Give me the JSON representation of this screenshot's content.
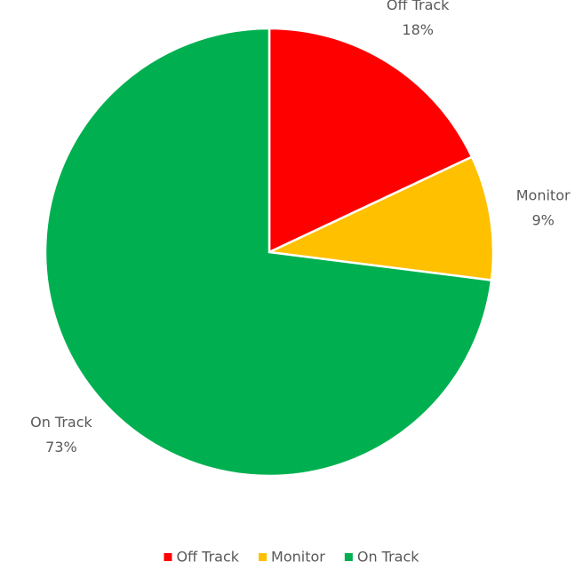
{
  "chart_data": {
    "type": "pie",
    "categories": [
      "Off Track",
      "Monitor",
      "On Track"
    ],
    "values": [
      18,
      9,
      73
    ],
    "value_labels": [
      "18%",
      "9%",
      "73%"
    ],
    "colors": [
      "#ff0000",
      "#ffc000",
      "#00b050"
    ],
    "legend": "bottom"
  }
}
